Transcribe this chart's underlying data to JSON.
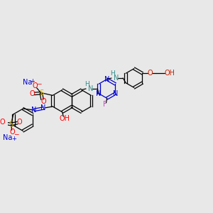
{
  "bg_color": "#e8e8e8",
  "bond_color": "#000000",
  "xlim": [
    0,
    9.2
  ],
  "ylim": [
    1.8,
    7.8
  ],
  "figsize": [
    3.0,
    3.0
  ],
  "dpi": 100,
  "colors": {
    "Na": "#0000cc",
    "S": "#ccaa00",
    "O": "#ff0000",
    "N": "#0000cc",
    "NH": "#2e8b8b",
    "F": "#cc44cc",
    "OH_right": "#cc2200",
    "bond": "#000000"
  }
}
